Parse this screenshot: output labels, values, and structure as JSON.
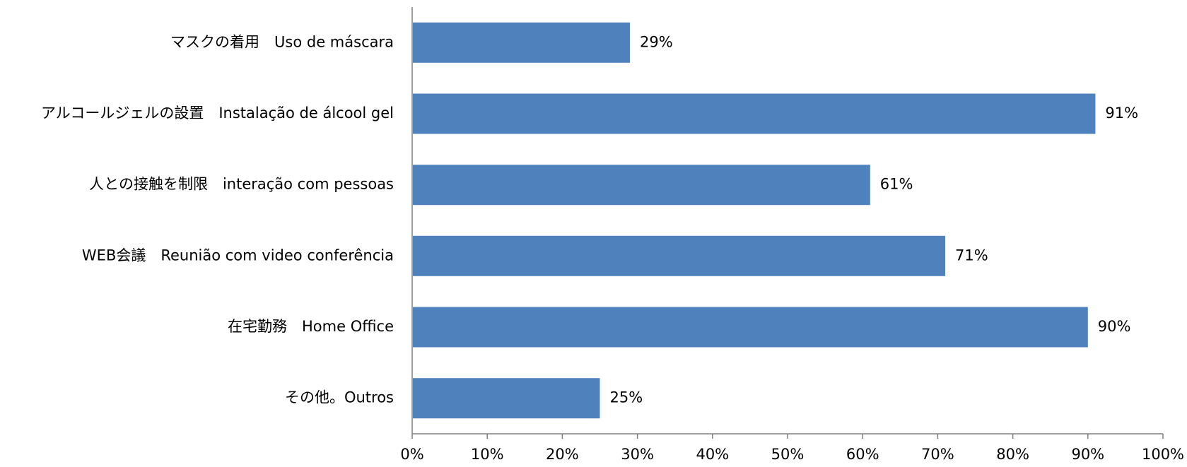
{
  "chart_data": {
    "type": "bar",
    "orientation": "horizontal",
    "categories": [
      "マスクの着用　Uso de máscara",
      "アルコールジェルの設置　Instalação de álcool gel",
      "人との接触を制限　interação com pessoas",
      "WEB会議　Reunião com video conferência",
      "在宅勤務　Home Office",
      "その他。Outros"
    ],
    "values": [
      29,
      91,
      61,
      71,
      90,
      25
    ],
    "data_labels": [
      "29%",
      "91%",
      "61%",
      "71%",
      "90%",
      "25%"
    ],
    "xlim": [
      0,
      100
    ],
    "x_ticks": [
      0,
      10,
      20,
      30,
      40,
      50,
      60,
      70,
      80,
      90,
      100
    ],
    "x_tick_labels": [
      "0%",
      "10%",
      "20%",
      "30%",
      "40%",
      "50%",
      "60%",
      "70%",
      "80%",
      "90%",
      "100%"
    ],
    "title": "",
    "xlabel": "",
    "ylabel": "",
    "grid": false,
    "legend": "none",
    "bar_color": "#4F81BD",
    "axis_color": "#7F7F7F"
  }
}
